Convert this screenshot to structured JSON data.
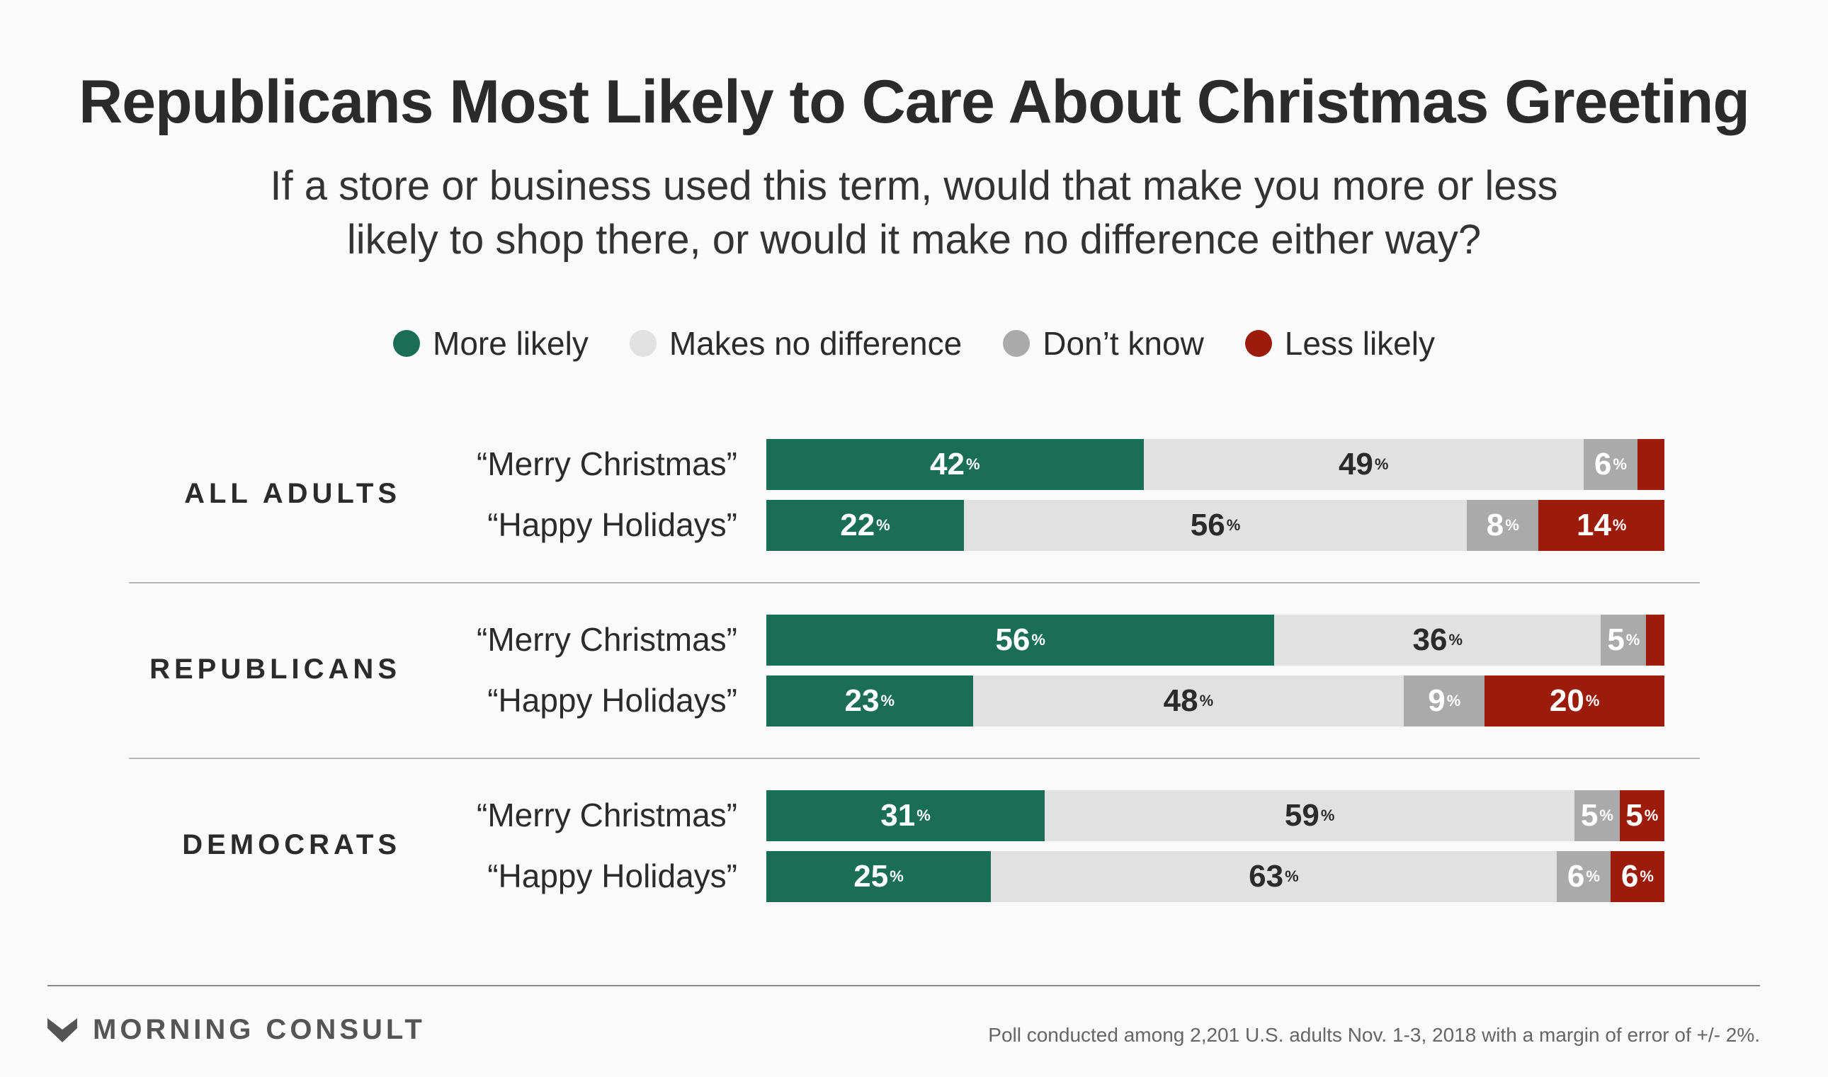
{
  "chart_data": {
    "type": "bar",
    "orientation": "horizontal",
    "stacked": true,
    "title": "Republicans Most Likely to Care About Christmas Greeting",
    "subtitle_lines": [
      "If a store or business used this term, would that make you more or less",
      "likely to shop there, or would it make no difference either way?"
    ],
    "legend_position": "top",
    "series": [
      {
        "name": "More likely",
        "color": "#1a6e55"
      },
      {
        "name": "Makes no difference",
        "color": "#e1e1e1"
      },
      {
        "name": "Don’t know",
        "color": "#aaaaaa"
      },
      {
        "name": "Less likely",
        "color": "#9b1c0a"
      }
    ],
    "groups": [
      {
        "name": "ALL ADULTS",
        "rows": [
          {
            "label": "“Merry Christmas”",
            "values": [
              42,
              49,
              6,
              3
            ]
          },
          {
            "label": "“Happy Holidays”",
            "values": [
              22,
              56,
              8,
              14
            ]
          }
        ]
      },
      {
        "name": "REPUBLICANS",
        "rows": [
          {
            "label": "“Merry Christmas”",
            "values": [
              56,
              36,
              5,
              2
            ]
          },
          {
            "label": "“Happy Holidays”",
            "values": [
              23,
              48,
              9,
              20
            ]
          }
        ]
      },
      {
        "name": "DEMOCRATS",
        "rows": [
          {
            "label": "“Merry Christmas”",
            "values": [
              31,
              59,
              5,
              5
            ]
          },
          {
            "label": "“Happy Holidays”",
            "values": [
              25,
              63,
              6,
              6
            ]
          }
        ]
      }
    ],
    "label_min_value": 5,
    "xlim": [
      0,
      100
    ],
    "unit": "%"
  },
  "footer": {
    "brand": "MORNING CONSULT",
    "source": "Poll conducted among 2,201 U.S. adults Nov. 1-3, 2018 with a margin of error of +/- 2%."
  }
}
